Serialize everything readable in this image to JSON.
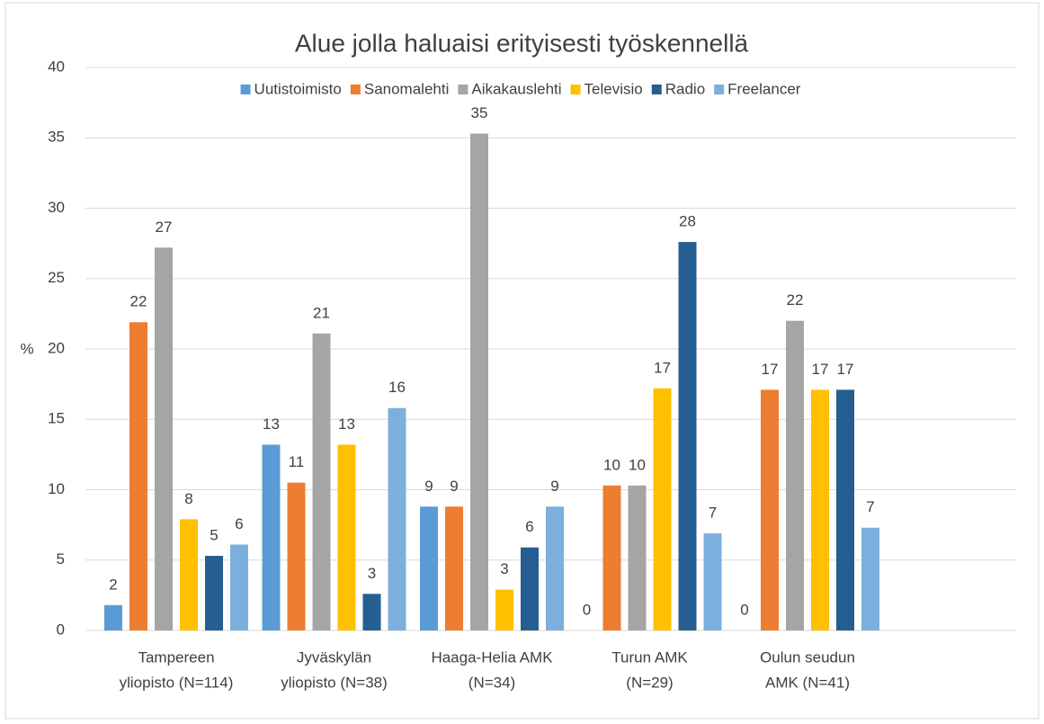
{
  "chart_data": {
    "type": "bar",
    "title": "Alue jolla haluaisi erityisesti työskennellä",
    "y_label": "%",
    "categories": [
      [
        "Tampereen",
        "yliopisto (N=114)"
      ],
      [
        "Jyväskylän",
        "yliopisto (N=38)"
      ],
      [
        "Haaga-Helia AMK",
        "(N=34)"
      ],
      [
        "Turun AMK",
        "(N=29)"
      ],
      [
        "Oulun seudun",
        "AMK (N=41)"
      ]
    ],
    "series": [
      {
        "name": "Uutistoimisto",
        "color": "#5b9bd5",
        "values": [
          1.8,
          13.2,
          8.8,
          0,
          0
        ],
        "value_labels": [
          "2",
          "13",
          "9",
          "0",
          "0"
        ]
      },
      {
        "name": "Sanomalehti",
        "color": "#ed7d31",
        "values": [
          21.9,
          10.5,
          8.8,
          10.3,
          17.1
        ],
        "value_labels": [
          "22",
          "11",
          "9",
          "10",
          "17"
        ]
      },
      {
        "name": "Aikakauslehti",
        "color": "#a5a5a5",
        "values": [
          27.2,
          21.1,
          35.3,
          10.3,
          22.0
        ],
        "value_labels": [
          "27",
          "21",
          "35",
          "10",
          "22"
        ]
      },
      {
        "name": "Televisio",
        "color": "#ffc000",
        "values": [
          7.9,
          13.2,
          2.9,
          17.2,
          17.1
        ],
        "value_labels": [
          "8",
          "13",
          "3",
          "17",
          "17"
        ]
      },
      {
        "name": "Radio",
        "color": "#255e91",
        "values": [
          5.3,
          2.6,
          5.9,
          27.6,
          17.1
        ],
        "value_labels": [
          "5",
          "3",
          "6",
          "28",
          "17"
        ]
      },
      {
        "name": "Freelancer",
        "color": "#7cafdd",
        "values": [
          6.1,
          15.8,
          8.8,
          6.9,
          7.3
        ],
        "value_labels": [
          "6",
          "16",
          "9",
          "7",
          "7"
        ]
      }
    ],
    "ylim": [
      0,
      40
    ],
    "yticks": [
      0,
      5,
      10,
      15,
      20,
      25,
      30,
      35,
      40
    ],
    "grid": true,
    "legend": "top"
  }
}
